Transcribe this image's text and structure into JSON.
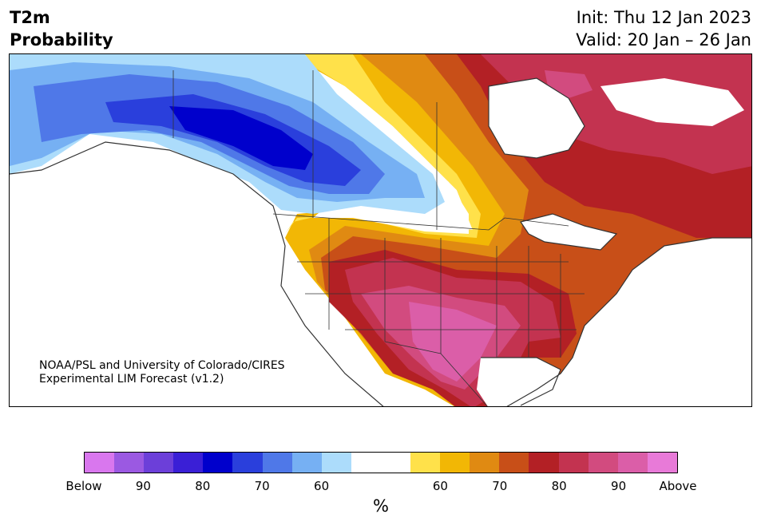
{
  "title": {
    "line1": "T2m",
    "line2": "Probability"
  },
  "header_right": {
    "init": "Init: Thu 12 Jan 2023",
    "valid": "Valid: 20 Jan – 26 Jan"
  },
  "credit": {
    "line1": "NOAA/PSL and University of Colorado/CIRES",
    "line2": "Experimental LIM Forecast (v1.2)"
  },
  "colorbar": {
    "colors": [
      "#d977ee",
      "#9b59e2",
      "#6c3fd9",
      "#3a1fd6",
      "#0000cc",
      "#2a3fdc",
      "#4f78e8",
      "#76b0f3",
      "#acdcfb",
      "#ffffff",
      "#ffffff",
      "#ffe14a",
      "#f2b705",
      "#e08a12",
      "#c84f18",
      "#b32025",
      "#c33350",
      "#d24b7f",
      "#db5ea8",
      "#e87ad8"
    ],
    "labels": [
      "Below",
      "90",
      "80",
      "70",
      "60",
      "60",
      "70",
      "80",
      "90",
      "Above"
    ],
    "unit": "%"
  },
  "map_colors": {
    "blue_light": "#acdcfb",
    "blue_mid": "#76b0f3",
    "blue": "#4f78e8",
    "blue_deep": "#2a3fdc",
    "blue_core": "#0000cc",
    "yellow": "#ffe14a",
    "gold": "#f2b705",
    "orange": "#e08a12",
    "orange_dark": "#c84f18",
    "red": "#b32025",
    "crimson": "#c33350",
    "rose": "#d24b7f",
    "pink": "#db5ea8",
    "lakes": "#ffffff"
  }
}
